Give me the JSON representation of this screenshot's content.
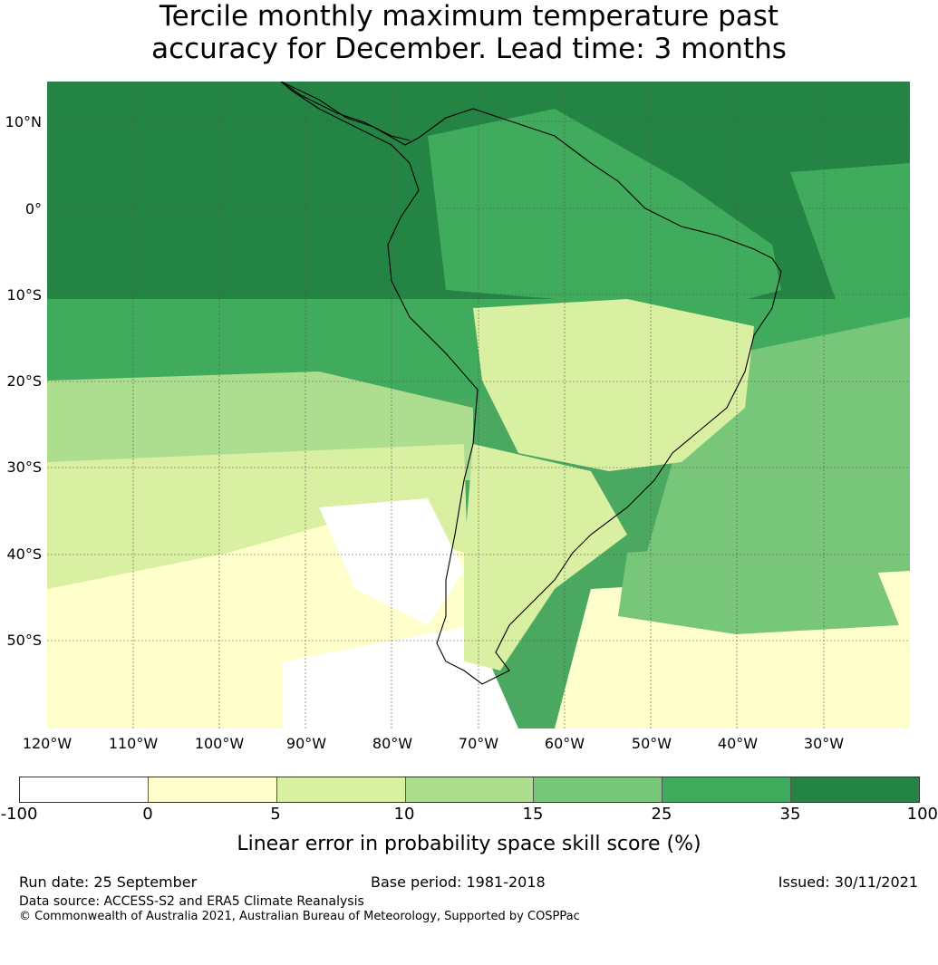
{
  "title": {
    "line1": "Tercile monthly maximum temperature past",
    "line2": "accuracy for December. Lead time: 3 months"
  },
  "map": {
    "region": "South America",
    "lat_labels": [
      "10°N",
      "0°",
      "10°S",
      "20°S",
      "30°S",
      "40°S",
      "50°S"
    ],
    "lon_labels": [
      "120°W",
      "110°W",
      "100°W",
      "90°W",
      "80°W",
      "70°W",
      "60°W",
      "50°W",
      "40°W",
      "30°W"
    ],
    "colors": {
      "band_neg100_0": "#ffffff",
      "band_0_5": "#ffffcc",
      "band_5_10": "#d9f0a3",
      "band_10_15": "#addd8e",
      "band_15_25": "#78c679",
      "band_25_35": "#41ab5d",
      "band_35_100": "#238443",
      "coastline": "#000000",
      "gridline": "#555555"
    }
  },
  "colorbar": {
    "ticks": [
      "-100",
      "0",
      "5",
      "10",
      "15",
      "25",
      "35",
      "100"
    ],
    "label": "Linear error in probability space skill score (%)"
  },
  "footer": {
    "run_date": "Run date: 25 September",
    "base_period": "Base period: 1981-2018",
    "issued": "Issued: 30/11/2021",
    "data_source": "Data source: ACCESS-S2 and ERA5 Climate Reanalysis",
    "copyright": "© Commonwealth of Australia 2021, Australian Bureau of Meteorology, Supported by COSPPac"
  }
}
